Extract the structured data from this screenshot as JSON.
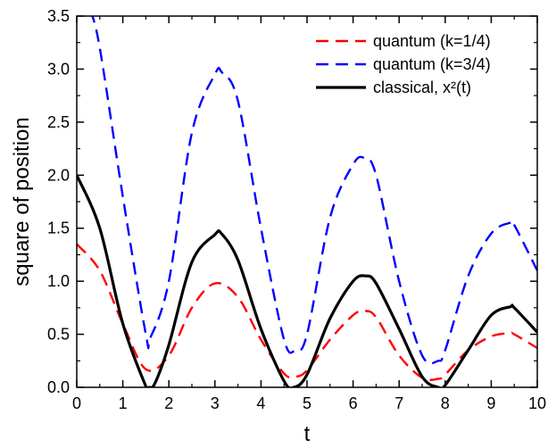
{
  "chart_data": {
    "type": "line",
    "xlabel": "t",
    "ylabel": "square of position",
    "xlim": [
      0,
      10
    ],
    "ylim": [
      0,
      3.5
    ],
    "x_ticks": [
      "0",
      "1",
      "2",
      "3",
      "4",
      "5",
      "6",
      "7",
      "8",
      "9",
      "10"
    ],
    "y_ticks": [
      "0.0",
      "0.5",
      "1.0",
      "1.5",
      "2.0",
      "2.5",
      "3.0",
      "3.5"
    ],
    "grid": false,
    "legend_position": "top-right",
    "series": [
      {
        "name": "quantum (k=1/4)",
        "color": "#ff0000",
        "style": "dashed",
        "x": [
          0,
          0.5,
          1.0,
          1.5,
          2.0,
          2.5,
          3.0,
          3.5,
          4.0,
          4.5,
          4.75,
          5.0,
          5.5,
          6.0,
          6.25,
          6.5,
          7.0,
          7.5,
          7.85,
          8.0,
          8.5,
          9.0,
          9.4,
          9.5,
          10.0
        ],
        "y": [
          1.35,
          1.1,
          0.6,
          0.17,
          0.3,
          0.75,
          0.98,
          0.85,
          0.45,
          0.13,
          0.1,
          0.16,
          0.45,
          0.68,
          0.72,
          0.66,
          0.3,
          0.09,
          0.08,
          0.12,
          0.35,
          0.48,
          0.51,
          0.5,
          0.37
        ]
      },
      {
        "name": "quantum (k=3/4)",
        "color": "#0000ff",
        "style": "dashed",
        "x": [
          0.3,
          0.5,
          1.0,
          1.5,
          1.6,
          2.0,
          2.5,
          3.0,
          3.15,
          3.5,
          4.0,
          4.5,
          4.75,
          5.0,
          5.5,
          6.0,
          6.25,
          6.5,
          7.0,
          7.5,
          7.85,
          8.0,
          8.5,
          9.0,
          9.4,
          9.5,
          10.0
        ],
        "y": [
          3.55,
          3.2,
          1.8,
          0.5,
          0.47,
          1.0,
          2.4,
          2.95,
          2.97,
          2.7,
          1.5,
          0.45,
          0.35,
          0.5,
          1.6,
          2.1,
          2.16,
          2.0,
          1.0,
          0.3,
          0.25,
          0.35,
          1.05,
          1.45,
          1.55,
          1.53,
          1.1
        ]
      },
      {
        "name": "classical, x²(t)",
        "color": "#000000",
        "style": "solid",
        "x": [
          0,
          0.5,
          1.0,
          1.5,
          1.57,
          1.7,
          2.0,
          2.5,
          3.0,
          3.14,
          3.5,
          4.0,
          4.5,
          4.71,
          5.0,
          5.5,
          6.0,
          6.28,
          6.5,
          7.0,
          7.5,
          7.85,
          8.0,
          8.5,
          9.0,
          9.42,
          9.5,
          10.0
        ],
        "y": [
          2.0,
          1.5,
          0.6,
          0.01,
          0.0,
          0.04,
          0.4,
          1.18,
          1.44,
          1.45,
          1.2,
          0.55,
          0.06,
          0.0,
          0.12,
          0.65,
          1.0,
          1.05,
          0.98,
          0.55,
          0.1,
          0.0,
          0.02,
          0.35,
          0.68,
          0.76,
          0.75,
          0.52
        ]
      }
    ]
  }
}
